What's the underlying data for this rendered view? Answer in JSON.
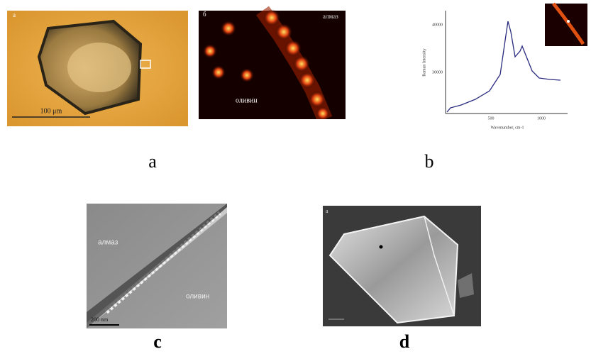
{
  "panels": [
    {
      "caption": "a",
      "images": [
        {
          "label": "а",
          "scale_bar": "100 μm"
        },
        {
          "label": "б",
          "texts": [
            "алмаз",
            "оливин"
          ]
        }
      ]
    },
    {
      "caption": "b",
      "spectrum": {
        "y_label": "Raman Intensity",
        "x_label": "Wavenumber, cm-1",
        "yticks": [
          "40000",
          "30000"
        ],
        "xticks": [
          "500",
          "1000"
        ]
      }
    },
    {
      "caption": "c",
      "texts": [
        "алмаз",
        "оливин"
      ],
      "scale_bar": "200 nm"
    },
    {
      "caption": "d",
      "label": "a"
    }
  ]
}
